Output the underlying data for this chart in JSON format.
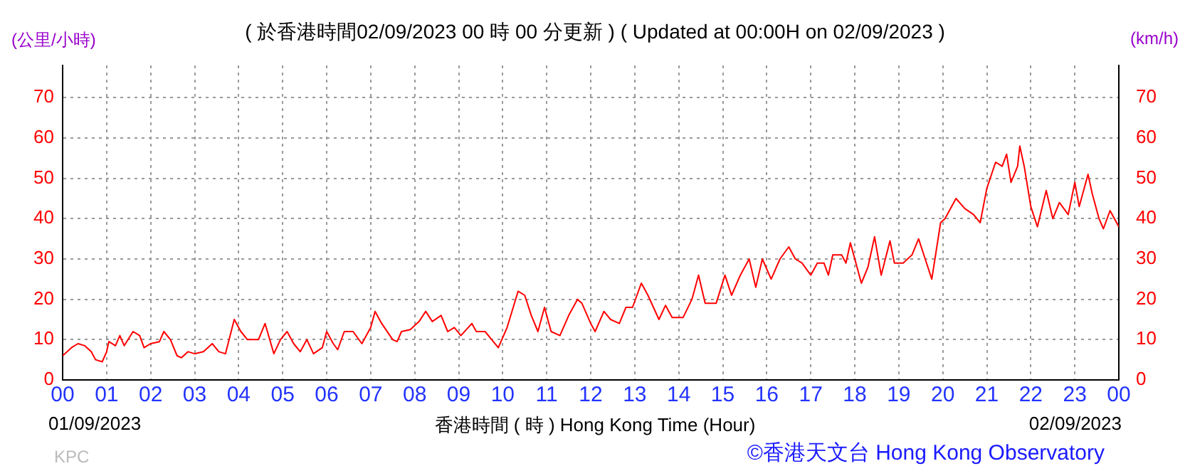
{
  "chart_data": {
    "type": "line",
    "title": "( 於香港時間02/09/2023 00 時 00 分更新 ) ( Updated at 00:00H on 02/09/2023 )",
    "ylabel": "(公里/小時)",
    "y2label": "(km/h)",
    "xlabel": "香港時間 ( 時 )  Hong Kong Time (Hour)",
    "annotations": [
      "01/09/2023",
      "02/09/2023",
      "KPC",
      "©香港天文台 Hong Kong Observatory"
    ],
    "x": [
      0,
      0.2,
      0.35,
      0.5,
      0.65,
      0.75,
      0.9,
      1.0,
      1.05,
      1.2,
      1.3,
      1.4,
      1.6,
      1.75,
      1.85,
      2.0,
      2.2,
      2.3,
      2.45,
      2.6,
      2.7,
      2.85,
      3.0,
      3.2,
      3.4,
      3.55,
      3.7,
      3.9,
      4.05,
      4.2,
      4.45,
      4.6,
      4.8,
      4.95,
      5.1,
      5.25,
      5.4,
      5.55,
      5.7,
      5.9,
      6.0,
      6.15,
      6.25,
      6.4,
      6.6,
      6.8,
      7.0,
      7.1,
      7.25,
      7.5,
      7.6,
      7.7,
      7.9,
      8.1,
      8.25,
      8.4,
      8.6,
      8.75,
      8.9,
      9.05,
      9.3,
      9.4,
      9.6,
      9.75,
      9.9,
      10.1,
      10.35,
      10.5,
      10.65,
      10.8,
      10.95,
      11.1,
      11.3,
      11.5,
      11.7,
      11.8,
      12.0,
      12.1,
      12.3,
      12.45,
      12.65,
      12.8,
      12.95,
      13.15,
      13.3,
      13.55,
      13.7,
      13.85,
      14.1,
      14.3,
      14.45,
      14.6,
      14.85,
      15.05,
      15.2,
      15.4,
      15.6,
      15.75,
      15.9,
      16.1,
      16.3,
      16.5,
      16.65,
      16.8,
      17.0,
      17.15,
      17.3,
      17.4,
      17.5,
      17.7,
      17.8,
      17.9,
      18.05,
      18.15,
      18.3,
      18.45,
      18.6,
      18.8,
      18.9,
      19.1,
      19.3,
      19.45,
      19.6,
      19.75,
      19.85,
      19.95,
      20.05,
      20.3,
      20.5,
      20.7,
      20.85,
      21.0,
      21.2,
      21.35,
      21.45,
      21.55,
      21.7,
      21.75,
      21.85,
      22.0,
      22.15,
      22.35,
      22.5,
      22.65,
      22.85,
      23.0,
      23.1,
      23.3,
      23.4,
      23.55,
      23.65,
      23.8,
      24.0
    ],
    "series": [
      {
        "color": "#ff0000",
        "values": [
          6,
          8,
          9,
          8.5,
          7,
          5,
          4.5,
          7,
          9.5,
          8.5,
          11,
          8.5,
          12,
          11,
          8,
          9,
          9.5,
          12,
          10,
          6,
          5.5,
          7,
          6.5,
          7,
          9,
          7,
          6.5,
          15,
          12,
          10,
          10,
          14,
          6.5,
          10,
          12,
          9,
          7,
          10,
          6.5,
          8,
          12,
          9,
          7.5,
          12,
          12,
          9,
          13,
          17,
          14,
          10,
          9.5,
          12,
          12.5,
          14.5,
          17,
          14.5,
          16,
          12,
          13,
          11,
          14,
          12,
          12,
          10,
          8,
          13,
          22,
          21,
          16,
          12,
          18,
          12,
          11,
          16,
          20,
          19,
          14,
          12,
          17,
          15,
          14,
          18,
          18,
          24,
          21,
          15,
          18.5,
          15.5,
          15.5,
          20,
          26,
          19,
          19,
          26,
          21,
          26,
          30,
          23,
          30,
          25,
          30,
          33,
          30,
          29,
          26,
          29,
          29,
          26,
          31,
          31,
          29,
          34,
          28,
          24,
          28,
          35.5,
          26,
          34.5,
          29,
          29,
          31,
          35,
          30,
          25,
          32,
          39,
          40,
          45,
          42.5,
          41,
          39,
          47.5,
          54,
          53,
          56,
          49,
          53,
          58,
          53,
          43,
          38,
          47,
          40,
          44,
          41,
          49,
          43,
          51,
          46,
          40,
          37.5,
          42,
          38
        ]
      }
    ],
    "xlim": [
      0,
      24
    ],
    "xticks": [
      {
        "value": 0,
        "label": "00"
      },
      {
        "value": 1,
        "label": "01"
      },
      {
        "value": 2,
        "label": "02"
      },
      {
        "value": 3,
        "label": "03"
      },
      {
        "value": 4,
        "label": "04"
      },
      {
        "value": 5,
        "label": "05"
      },
      {
        "value": 6,
        "label": "06"
      },
      {
        "value": 7,
        "label": "07"
      },
      {
        "value": 8,
        "label": "08"
      },
      {
        "value": 9,
        "label": "09"
      },
      10,
      11,
      12,
      13,
      14,
      15,
      16,
      17,
      18,
      19,
      20,
      21,
      22,
      23,
      {
        "value": 24,
        "label": "00"
      }
    ],
    "ylim": [
      0,
      78
    ],
    "yticks": [
      0,
      10,
      20,
      30,
      40,
      50,
      60,
      70
    ],
    "y2lim": [
      0,
      78
    ],
    "y2ticks": [
      0,
      10,
      20,
      30,
      40,
      50,
      60,
      70
    ],
    "grid": true,
    "legend": false,
    "marker": "none",
    "line_style": "solid"
  }
}
